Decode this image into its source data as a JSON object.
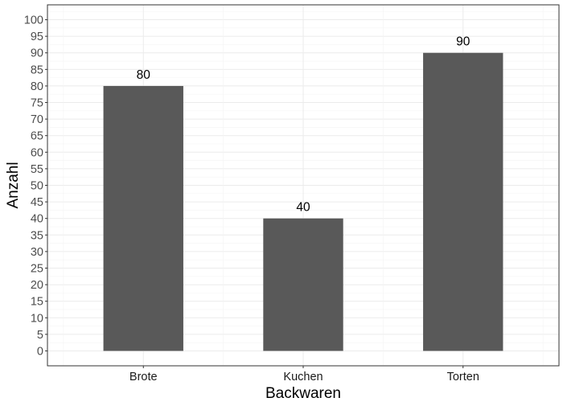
{
  "chart_data": {
    "type": "bar",
    "title": "",
    "xlabel": "Backwaren",
    "ylabel": "Anzahl",
    "categories": [
      "Brote",
      "Kuchen",
      "Torten"
    ],
    "values": [
      80,
      40,
      90
    ],
    "data_labels": [
      "80",
      "40",
      "90"
    ],
    "ylim": [
      -4.5,
      104.5
    ],
    "y_ticks": [
      0,
      5,
      10,
      15,
      20,
      25,
      30,
      35,
      40,
      45,
      50,
      55,
      60,
      65,
      70,
      75,
      80,
      85,
      90,
      95,
      100
    ],
    "grid": true,
    "legend": "none",
    "bar_color": "#595959",
    "panel_border_color": "#333333",
    "grid_color": "#ebebeb"
  }
}
